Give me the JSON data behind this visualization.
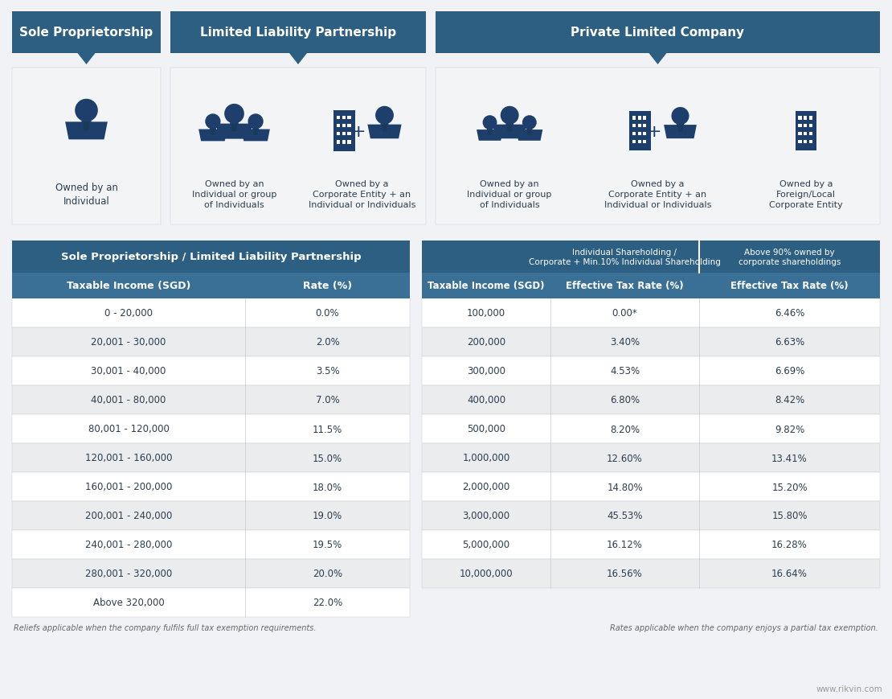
{
  "bg_color": "#f0f2f5",
  "header_color": "#2d5f82",
  "subheader_color": "#3a7096",
  "white": "#ffffff",
  "light_gray": "#eaecee",
  "dark_text": "#2c3e50",
  "mid_gray": "#c8cacf",
  "light_panel": "#f2f4f6",
  "section_headers": [
    "Sole Proprietorship",
    "Limited Liability Partnership",
    "Private Limited Company"
  ],
  "table1_title": "Sole Proprietorship / Limited Liability Partnership",
  "table1_col1_header": "Taxable Income (SGD)",
  "table1_col2_header": "Rate (%)",
  "table1_rows": [
    [
      "0 - 20,000",
      "0.0%"
    ],
    [
      "20,001 - 30,000",
      "2.0%"
    ],
    [
      "30,001 - 40,000",
      "3.5%"
    ],
    [
      "40,001 - 80,000",
      "7.0%"
    ],
    [
      "80,001 - 120,000",
      "11.5%"
    ],
    [
      "120,001 - 160,000",
      "15.0%"
    ],
    [
      "160,001 - 200,000",
      "18.0%"
    ],
    [
      "200,001 - 240,000",
      "19.0%"
    ],
    [
      "240,001 - 280,000",
      "19.5%"
    ],
    [
      "280,001 - 320,000",
      "20.0%"
    ],
    [
      "Above 320,000",
      "22.0%"
    ]
  ],
  "table2_super_col2": "Individual Shareholding /\nCorporate + Min.10% Individual Shareholding",
  "table2_super_col3": "Above 90% owned by\ncorporate shareholdings",
  "table2_col1_header": "Taxable Income (SGD)",
  "table2_col2_header": "Effective Tax Rate (%)",
  "table2_col3_header": "Effective Tax Rate (%)",
  "table2_rows": [
    [
      "100,000",
      "0.00*",
      "6.46%"
    ],
    [
      "200,000",
      "3.40%",
      "6.63%"
    ],
    [
      "300,000",
      "4.53%",
      "6.69%"
    ],
    [
      "400,000",
      "6.80%",
      "8.42%"
    ],
    [
      "500,000",
      "8.20%",
      "9.82%"
    ],
    [
      "1,000,000",
      "12.60%",
      "13.41%"
    ],
    [
      "2,000,000",
      "14.80%",
      "15.20%"
    ],
    [
      "3,000,000",
      "45.53%",
      "15.80%"
    ],
    [
      "5,000,000",
      "16.12%",
      "16.28%"
    ],
    [
      "10,000,000",
      "16.56%",
      "16.64%"
    ]
  ],
  "footnote1": "Reliefs applicable when the company fulfils full tax exemption requirements.",
  "footnote2": "Rates applicable when the company enjoys a partial tax exemption.",
  "watermark": "www.rikvin.com",
  "icon_color": "#1e3f6b"
}
